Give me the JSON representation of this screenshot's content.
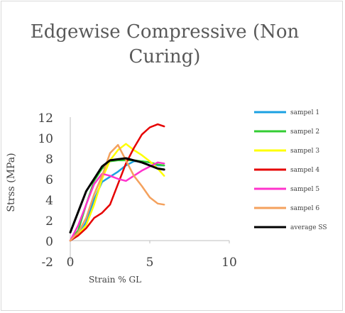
{
  "chart_data": {
    "type": "line",
    "title": "Edgewise Compressive (Non Curing)",
    "xlabel": "Strain % GL",
    "ylabel": "Strss (MPa)",
    "xlim": [
      0,
      10
    ],
    "ylim": [
      -2,
      12
    ],
    "x_ticks": [
      0,
      5,
      10
    ],
    "y_ticks": [
      -2,
      0,
      2,
      4,
      6,
      8,
      10,
      12
    ],
    "grid": false,
    "legend_position": "right",
    "series": [
      {
        "name": "sampel 1",
        "color": "#1ba1e2",
        "x": [
          0,
          0.5,
          1.0,
          1.5,
          2.0,
          2.5,
          3.0,
          3.5,
          4.0,
          4.5,
          5.0,
          5.5,
          5.9
        ],
        "y": [
          0,
          0.5,
          1.8,
          4.0,
          5.7,
          6.2,
          6.7,
          7.3,
          7.7,
          7.7,
          7.6,
          7.3,
          7.3
        ]
      },
      {
        "name": "sampel 2",
        "color": "#33cc33",
        "x": [
          0,
          0.5,
          1.0,
          1.5,
          2.0,
          2.5,
          3.0,
          3.5,
          4.0,
          4.5,
          5.0,
          5.5,
          5.9
        ],
        "y": [
          0,
          1.0,
          3.5,
          5.8,
          7.0,
          7.7,
          7.8,
          7.8,
          7.8,
          7.7,
          7.6,
          7.4,
          7.3
        ]
      },
      {
        "name": "sampel 3",
        "color": "#ffff00",
        "x": [
          0,
          0.5,
          1.0,
          1.5,
          2.0,
          2.5,
          3.0,
          3.5,
          4.0,
          4.5,
          5.0,
          5.5,
          5.9
        ],
        "y": [
          0,
          0.6,
          1.5,
          3.5,
          6.0,
          7.8,
          8.8,
          9.4,
          8.8,
          8.3,
          7.7,
          7.0,
          6.3
        ]
      },
      {
        "name": "sampel 4",
        "color": "#e60000",
        "x": [
          0,
          0.5,
          1.0,
          1.5,
          2.0,
          2.5,
          3.0,
          3.5,
          4.0,
          4.5,
          5.0,
          5.5,
          5.9
        ],
        "y": [
          0,
          0.5,
          1.2,
          2.2,
          2.7,
          3.5,
          5.5,
          7.5,
          9.0,
          10.3,
          11.0,
          11.3,
          11.1
        ]
      },
      {
        "name": "sampel 5",
        "color": "#ff33cc",
        "x": [
          0,
          0.5,
          1.0,
          1.5,
          2.0,
          2.5,
          3.0,
          3.5,
          4.0,
          4.5,
          5.0,
          5.5,
          5.9
        ],
        "y": [
          0,
          1.5,
          3.5,
          5.5,
          6.5,
          6.3,
          6.0,
          5.8,
          6.3,
          6.8,
          7.2,
          7.6,
          7.5
        ]
      },
      {
        "name": "sampel 6",
        "color": "#f4a15d",
        "x": [
          0,
          0.5,
          1.0,
          1.5,
          2.0,
          2.5,
          3.0,
          3.5,
          4.0,
          4.5,
          5.0,
          5.5,
          5.9
        ],
        "y": [
          0,
          0.8,
          2.2,
          4.5,
          6.3,
          8.5,
          9.3,
          7.8,
          6.3,
          5.3,
          4.2,
          3.6,
          3.5
        ]
      },
      {
        "name": "average SS",
        "color": "#000000",
        "x": [
          0,
          0.5,
          1.0,
          1.5,
          2.0,
          2.5,
          3.0,
          3.5,
          4.0,
          4.5,
          5.0,
          5.5,
          5.9
        ],
        "y": [
          0.8,
          2.8,
          4.8,
          6.0,
          7.2,
          7.8,
          7.9,
          8.0,
          7.8,
          7.6,
          7.3,
          7.0,
          6.9
        ]
      }
    ]
  }
}
